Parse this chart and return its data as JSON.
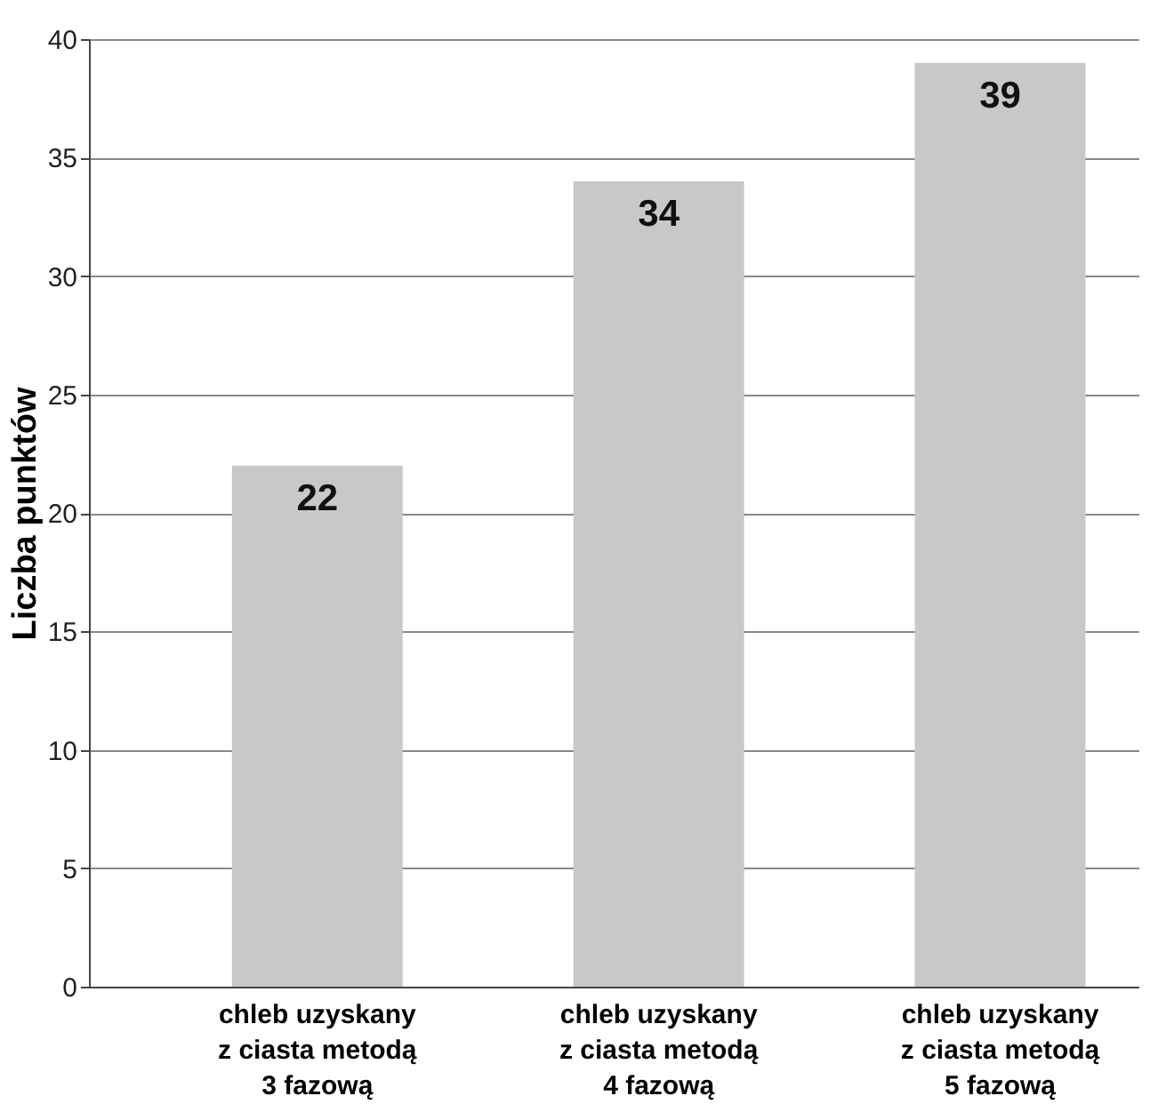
{
  "chart_data": {
    "type": "bar",
    "ylabel": "Liczba punktów",
    "categories": [
      "chleb uzyskany\nz ciasta metodą\n3 fazową",
      "chleb uzyskany\nz ciasta metodą\n4 fazową",
      "chleb uzyskany\nz ciasta metodą\n5 fazową"
    ],
    "values": [
      22,
      34,
      39
    ],
    "color": "#c8c8c8",
    "ylim": [
      0,
      40
    ],
    "yticks": [
      0,
      5,
      10,
      15,
      20,
      25,
      30,
      35,
      40
    ],
    "grid": "y",
    "data_labels": true
  }
}
